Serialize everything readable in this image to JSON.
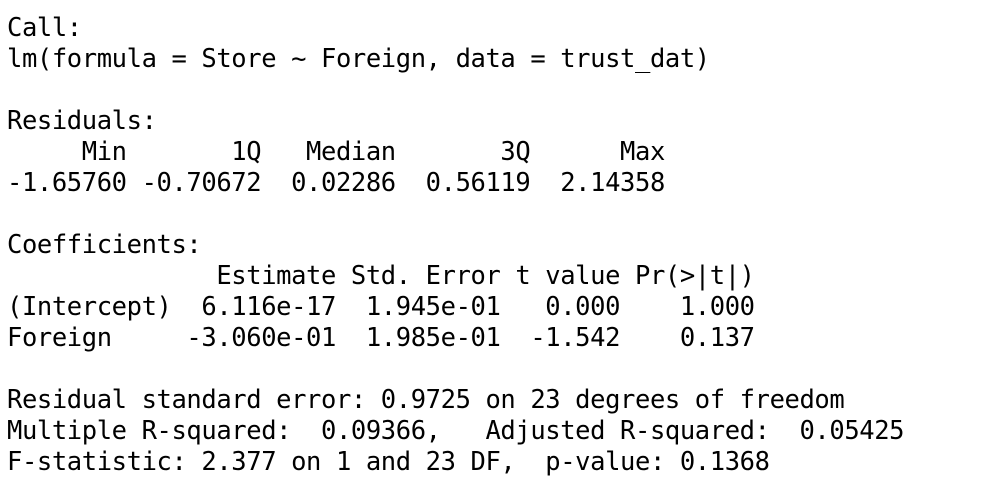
{
  "output": {
    "call_header": "Call:",
    "call": "lm(formula = Store ~ Foreign, data = trust_dat)",
    "residuals_header": "Residuals:",
    "residuals_labels": "     Min       1Q   Median       3Q      Max ",
    "residuals_values": "-1.65760 -0.70672  0.02286  0.56119  2.14358 ",
    "coefficients_header": "Coefficients:",
    "coef_col_header": "              Estimate Std. Error t value Pr(>|t|)",
    "coef_row_intercept": "(Intercept)  6.116e-17  1.945e-01   0.000    1.000",
    "coef_row_foreign": "Foreign     -3.060e-01  1.985e-01  -1.542    0.137",
    "rse": "Residual standard error: 0.9725 on 23 degrees of freedom",
    "r_squared": "Multiple R-squared:  0.09366,\tAdjusted R-squared:  0.05425 ",
    "f_statistic": "F-statistic: 2.377 on 1 and 23 DF,  p-value: 0.1368"
  }
}
